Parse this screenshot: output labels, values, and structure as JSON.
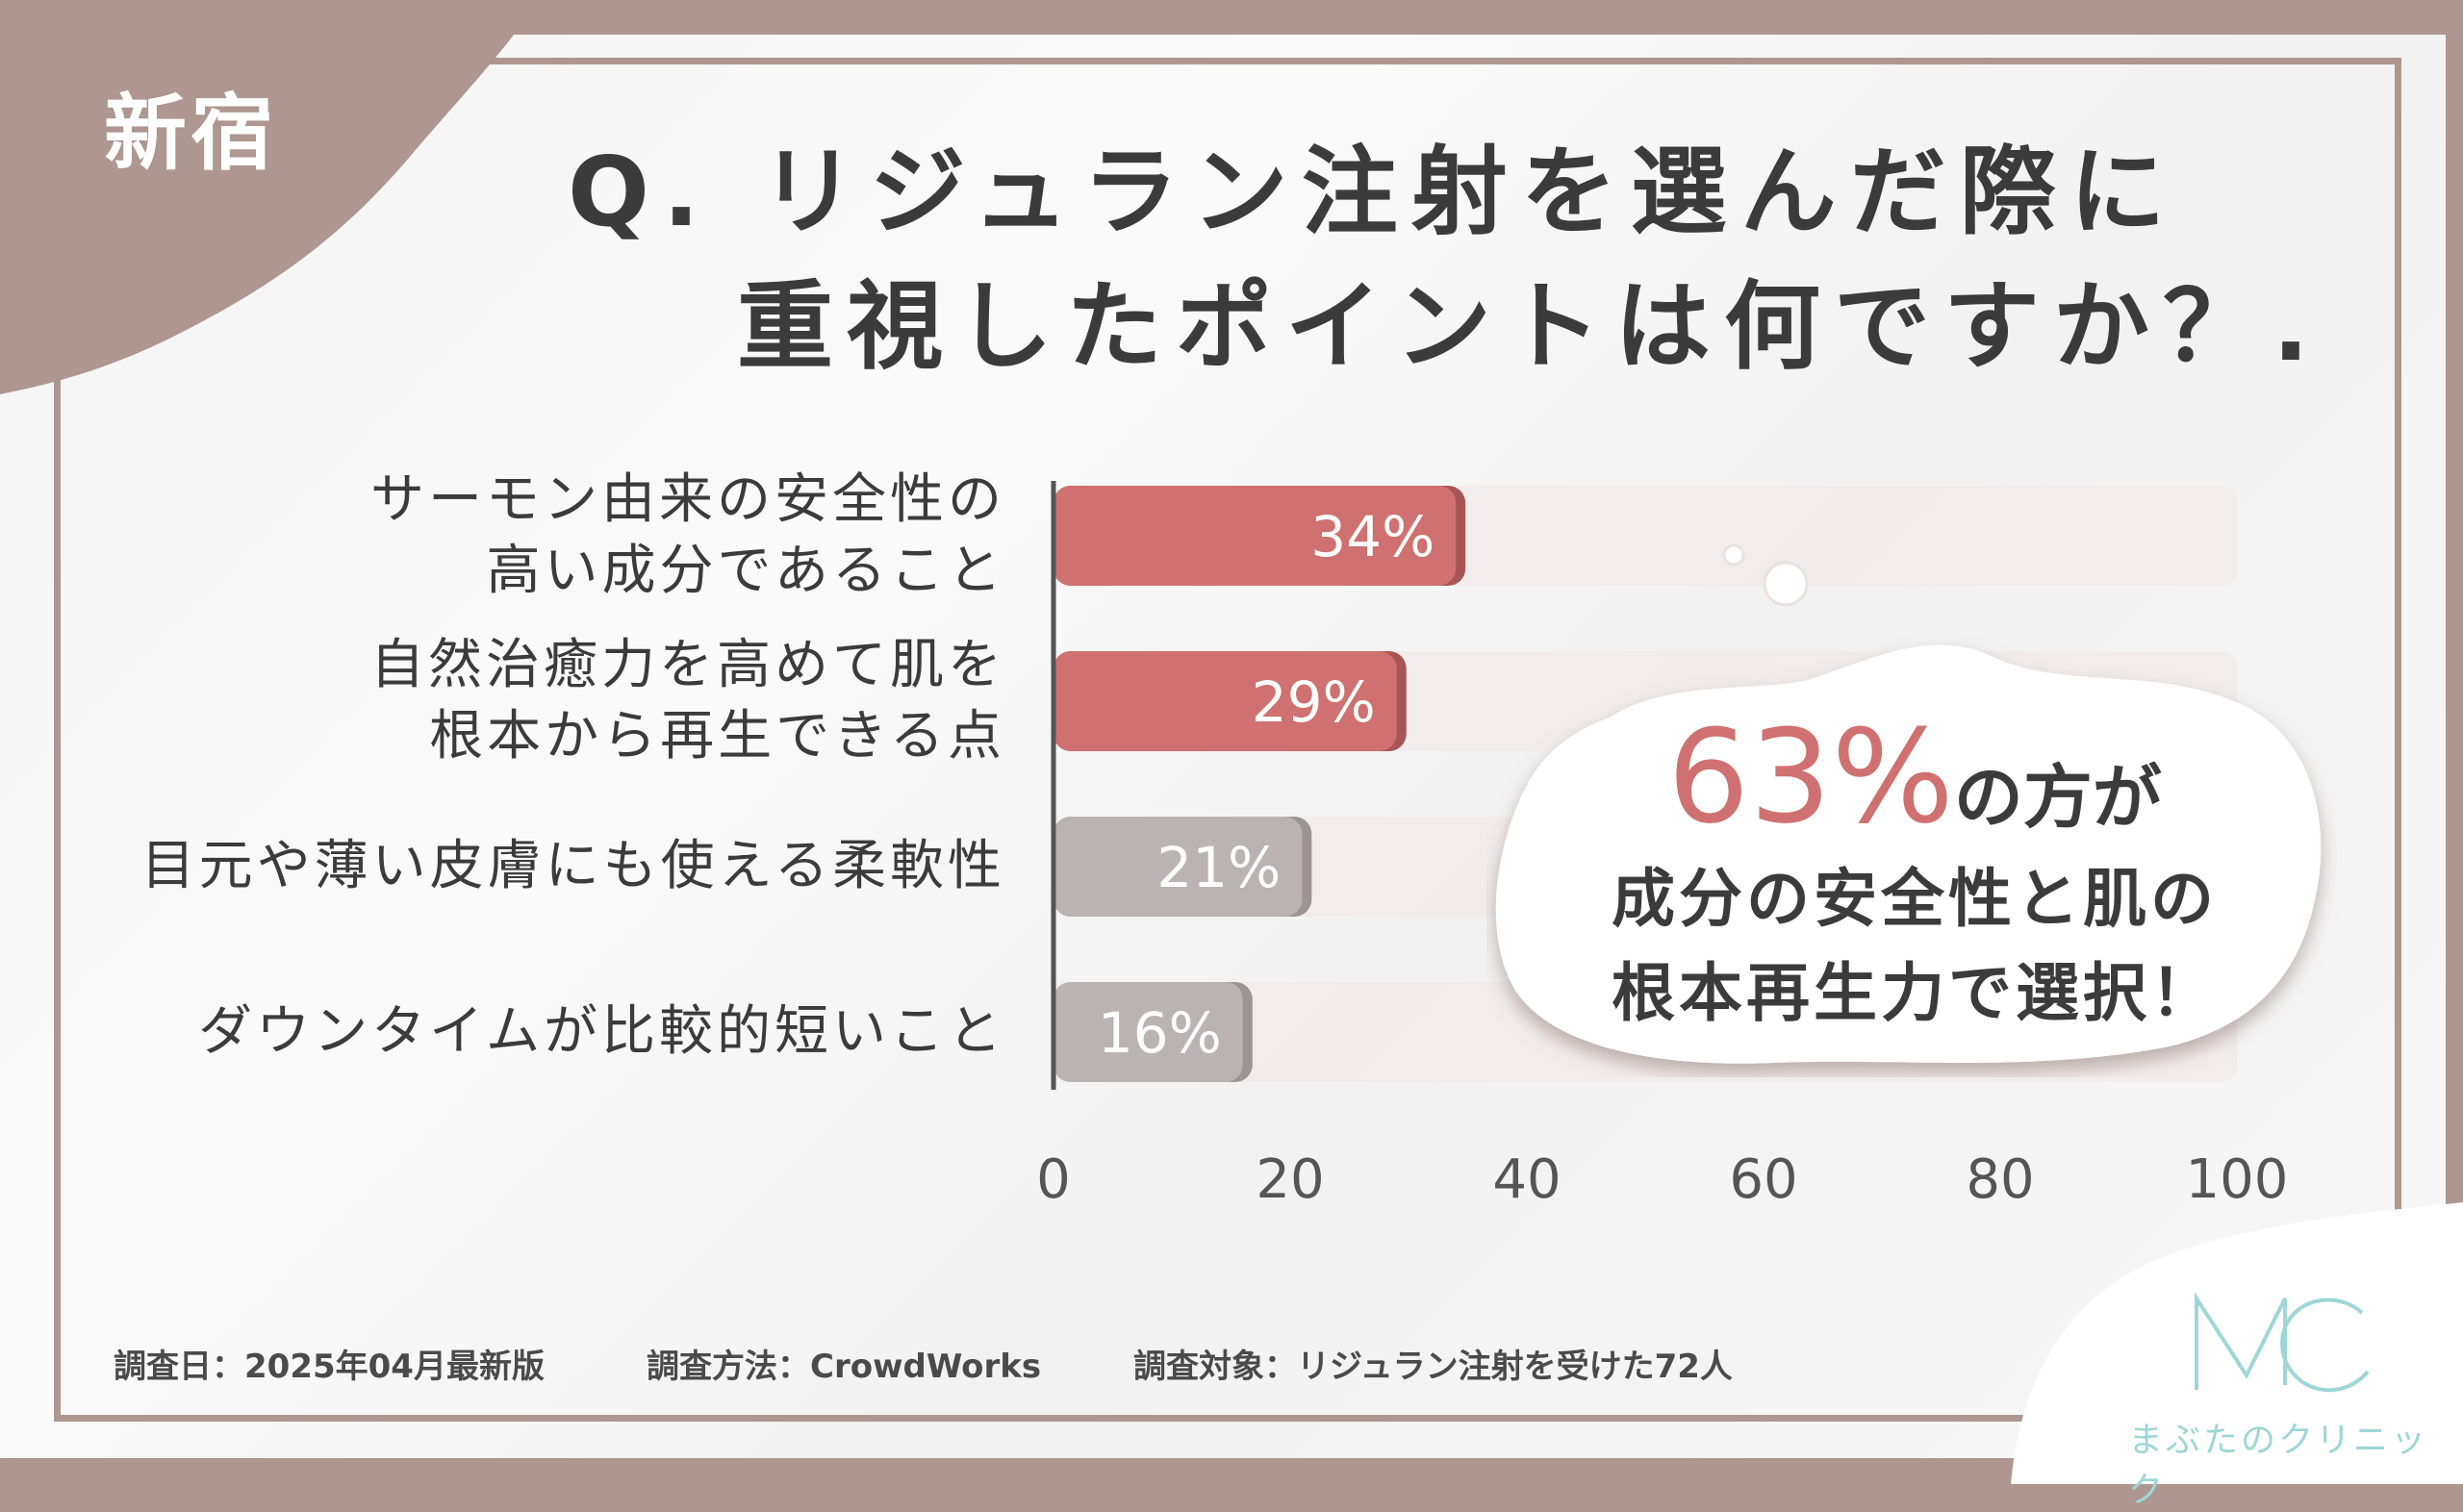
{
  "location": "新宿",
  "title": {
    "line1": "Q. リジュラン注射を選んだ際に",
    "line2": "重視したポイントは何ですか？."
  },
  "colors": {
    "accent": "#cf7170",
    "accent_dark": "#a85556",
    "gray_bar": "#bbb3b1",
    "track": "#f1ebea",
    "frame": "#ad9790"
  },
  "chart_data": {
    "type": "bar",
    "orientation": "horizontal",
    "categories": [
      [
        "サーモン由来の安全性の",
        "高い成分であること"
      ],
      [
        "自然治癒力を高めて肌を",
        "根本から再生できる点"
      ],
      [
        "目元や薄い皮膚にも使える柔軟性"
      ],
      [
        "ダウンタイムが比較的短いこと"
      ]
    ],
    "values": [
      34,
      29,
      21,
      16
    ],
    "value_labels": [
      "34%",
      "29%",
      "21%",
      "16%"
    ],
    "highlight": [
      true,
      true,
      false,
      false
    ],
    "xlim": [
      0,
      100
    ],
    "xticks": [
      0,
      20,
      40,
      60,
      80,
      100
    ],
    "grid": false
  },
  "callout": {
    "percent": "63%",
    "suffix": "の方が",
    "line2": "成分の安全性と肌の",
    "line3": "根本再生力で選択！"
  },
  "footer": {
    "date": "調査日：2025年04月最新版",
    "method": "調査方法：CrowdWorks",
    "target": "調査対象：リジュラン注射を受けた72人"
  },
  "logo": {
    "mark": "MC",
    "name": "まぶたのクリニック"
  }
}
